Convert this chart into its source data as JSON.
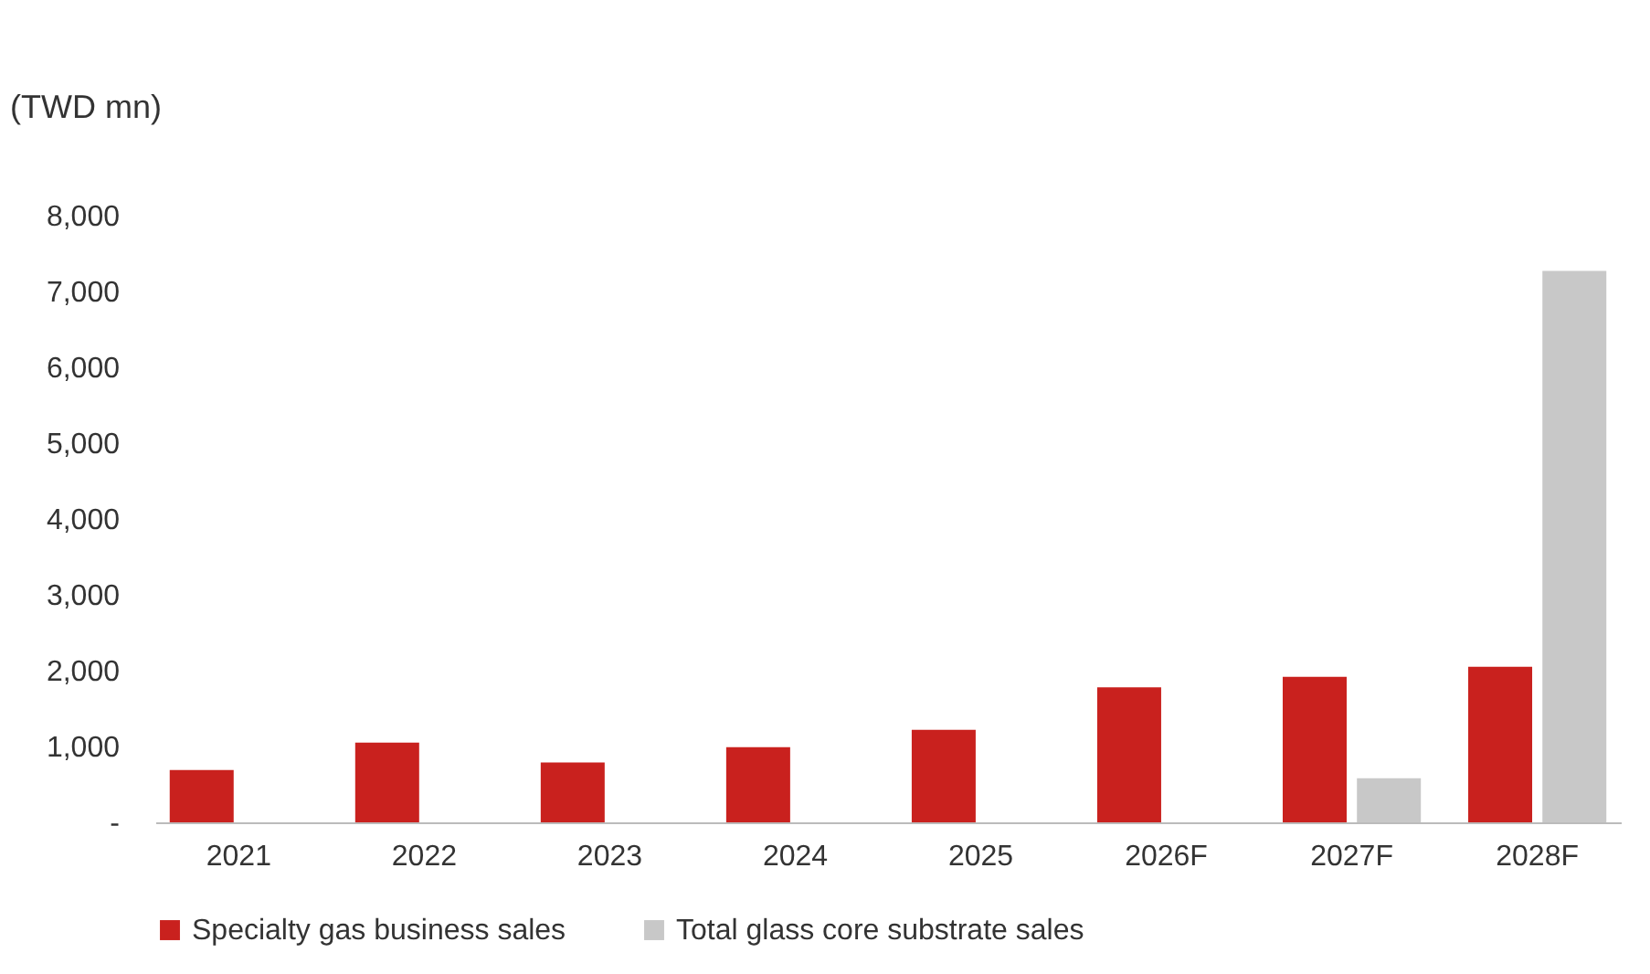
{
  "chart_data": {
    "type": "bar",
    "ylabel": "(TWD mn)",
    "categories": [
      "2021",
      "2022",
      "2023",
      "2024",
      "2025",
      "2026F",
      "2027F",
      "2028F"
    ],
    "series": [
      {
        "name": "Specialty gas business sales",
        "color": "#c9211e",
        "values": [
          690,
          1050,
          790,
          990,
          1220,
          1780,
          1920,
          2050
        ]
      },
      {
        "name": "Total glass core substrate sales",
        "color": "#c8c8c8",
        "values": [
          null,
          null,
          null,
          null,
          null,
          null,
          580,
          7270
        ]
      }
    ],
    "ylim": [
      0,
      8000
    ],
    "yticks": [
      {
        "value": 0,
        "label": "-"
      },
      {
        "value": 1000,
        "label": "1,000"
      },
      {
        "value": 2000,
        "label": "2,000"
      },
      {
        "value": 3000,
        "label": "3,000"
      },
      {
        "value": 4000,
        "label": "4,000"
      },
      {
        "value": 5000,
        "label": "5,000"
      },
      {
        "value": 6000,
        "label": "6,000"
      },
      {
        "value": 7000,
        "label": "7,000"
      },
      {
        "value": 8000,
        "label": "8,000"
      }
    ],
    "grid": false,
    "legend": "bottom"
  }
}
